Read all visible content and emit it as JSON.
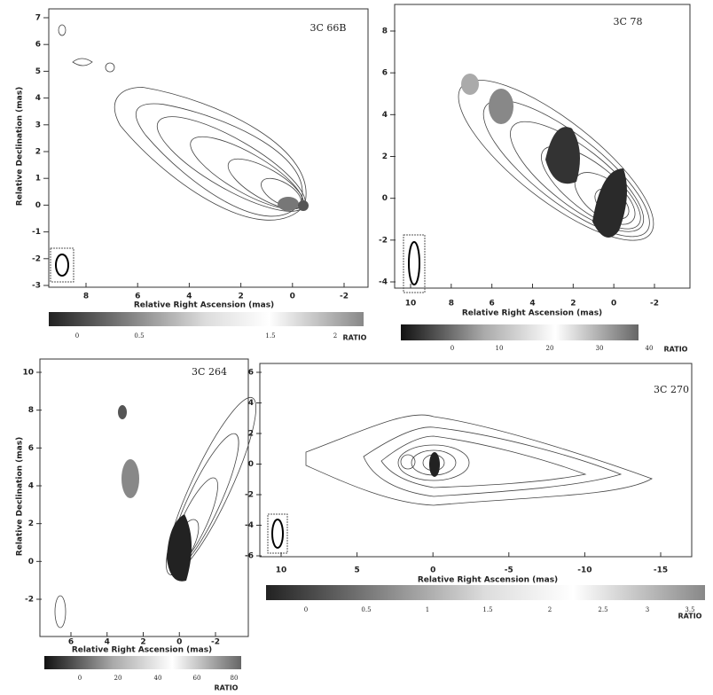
{
  "panels": [
    {
      "name": "3C 66B",
      "yticks": [
        "7",
        "6",
        "5",
        "4",
        "3",
        "2",
        "1",
        "0",
        "-1",
        "-2",
        "-3"
      ],
      "xticks": [
        "8",
        "6",
        "4",
        "2",
        "0",
        "-2"
      ],
      "ytitle": "Relative Declination (mas)",
      "xtitle": "Relative Right Ascension (mas)",
      "cbar_ticks": [
        "0",
        "0.5",
        "1.5",
        "2"
      ],
      "cbar_title": "RATIO"
    },
    {
      "name": "3C 78",
      "yticks": [
        "8",
        "6",
        "4",
        "2",
        "0",
        "-2",
        "-4"
      ],
      "xticks": [
        "10",
        "8",
        "6",
        "4",
        "2",
        "0",
        "-2"
      ],
      "xtitle": "Relative Right Ascension (mas)",
      "cbar_ticks": [
        "0",
        "10",
        "20",
        "30",
        "40"
      ],
      "cbar_title": "RATIO"
    },
    {
      "name": "3C 264",
      "yticks": [
        "10",
        "8",
        "6",
        "4",
        "2",
        "0",
        "-2"
      ],
      "xticks": [
        "6",
        "4",
        "2",
        "0",
        "-2"
      ],
      "ytitle": "Relative Declination (mas)",
      "xtitle": "Relative Right Ascension (mas)",
      "cbar_ticks": [
        "0",
        "20",
        "40",
        "60",
        "80"
      ],
      "cbar_title": "RATIO"
    },
    {
      "name": "3C 270",
      "yticks": [
        "6",
        "4",
        "2",
        "0",
        "-2",
        "-4",
        "-6"
      ],
      "xticks": [
        "10",
        "5",
        "0",
        "-5",
        "-10",
        "-15"
      ],
      "xtitle": "Relative Right Ascension (mas)",
      "cbar_ticks": [
        "0",
        "0.5",
        "1",
        "1.5",
        "2",
        "2.5",
        "3",
        "3.5"
      ],
      "cbar_title": "RATIO"
    }
  ]
}
